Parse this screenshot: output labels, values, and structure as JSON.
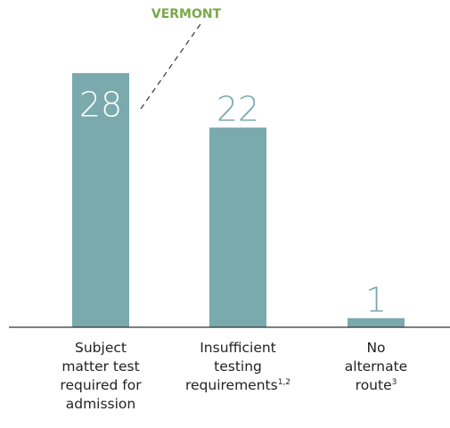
{
  "chart_data": {
    "type": "bar",
    "annotation": "VERMONT",
    "categories": [
      [
        "Subject",
        "matter test",
        "required for",
        "admission"
      ],
      [
        "Insufficient",
        "testing",
        "requirements"
      ],
      [
        "No",
        "alternate",
        "route"
      ]
    ],
    "footnotes": [
      null,
      "1,2",
      "3"
    ],
    "values": [
      28,
      22,
      1
    ],
    "color": "#7aa9ae",
    "ylim": [
      0,
      28
    ]
  }
}
